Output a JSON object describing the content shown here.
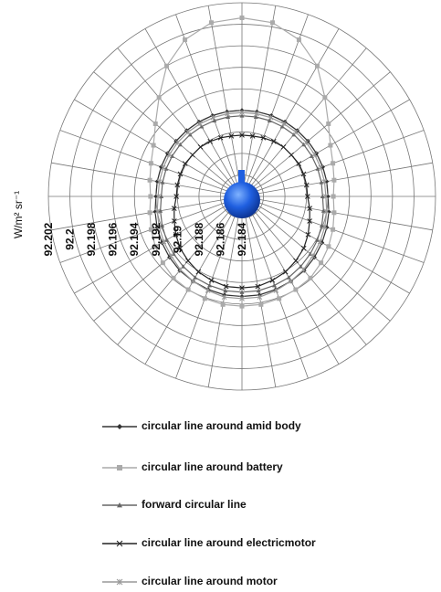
{
  "chart_data": {
    "type": "radar",
    "axis_label": "W/m² sr⁻¹",
    "categories": [
      null,
      null,
      null,
      null,
      null,
      null,
      null,
      null,
      null,
      null,
      null,
      null,
      null,
      null,
      null,
      null,
      null,
      null,
      null,
      null,
      null,
      null,
      null,
      null,
      null,
      null,
      null,
      null,
      null,
      null,
      null,
      null,
      null,
      null,
      null,
      null
    ],
    "rlim": [
      92.184,
      92.202
    ],
    "rticks": [
      92.184,
      92.186,
      92.188,
      92.19,
      92.192,
      92.194,
      92.196,
      92.198,
      92.2,
      92.202
    ],
    "grid": true,
    "legend": "bottom",
    "series": [
      {
        "name": "circular line around amid body",
        "color": "#333333",
        "marker": "diamond",
        "values": [
          92.192,
          92.192,
          92.192,
          92.192,
          92.192,
          92.192,
          92.192,
          92.192,
          92.192,
          92.192,
          92.1922,
          92.1924,
          92.1926,
          92.1928,
          92.193,
          92.1931,
          92.1932,
          92.1933,
          92.1933,
          92.1933,
          92.1932,
          92.1931,
          92.193,
          92.1928,
          92.1926,
          92.1924,
          92.1922,
          92.192,
          92.192,
          92.192,
          92.192,
          92.192,
          92.192,
          92.192,
          92.192,
          92.192
        ]
      },
      {
        "name": "circular line around battery",
        "color": "#aaaaaa",
        "marker": "square",
        "values": [
          92.2006,
          92.2004,
          92.1995,
          92.198,
          92.196,
          92.1945,
          92.1935,
          92.193,
          92.1927,
          92.1925,
          92.1927,
          92.193,
          92.1933,
          92.1936,
          92.1939,
          92.194,
          92.1941,
          92.1942,
          92.1942,
          92.1942,
          92.1941,
          92.194,
          92.1939,
          92.1936,
          92.1933,
          92.193,
          92.1927,
          92.1925,
          92.1927,
          92.193,
          92.1935,
          92.1945,
          92.196,
          92.198,
          92.1995,
          92.2004
        ]
      },
      {
        "name": "forward circular line",
        "color": "#666666",
        "marker": "triangle",
        "values": [
          92.1915,
          92.1915,
          92.1915,
          92.1915,
          92.1915,
          92.1915,
          92.1915,
          92.1915,
          92.1915,
          92.1915,
          92.1917,
          92.1919,
          92.1921,
          92.1923,
          92.1925,
          92.1927,
          92.1928,
          92.1929,
          92.1929,
          92.1929,
          92.1928,
          92.1927,
          92.1925,
          92.1923,
          92.1921,
          92.1919,
          92.1917,
          92.1915,
          92.1915,
          92.1915,
          92.1915,
          92.1915,
          92.1915,
          92.1915,
          92.1915,
          92.1915
        ]
      },
      {
        "name": "circular line around electricmotor",
        "color": "#222222",
        "marker": "x",
        "values": [
          92.1897,
          92.1897,
          92.1898,
          92.1899,
          92.19,
          92.19,
          92.1901,
          92.1901,
          92.1901,
          92.1901,
          92.1904,
          92.1907,
          92.1911,
          92.1915,
          92.1918,
          92.1921,
          92.1923,
          92.1925,
          92.1925,
          92.1925,
          92.1923,
          92.1921,
          92.1918,
          92.1915,
          92.1911,
          92.1907,
          92.1904,
          92.1901,
          92.1901,
          92.1901,
          92.1901,
          92.19,
          92.19,
          92.1899,
          92.1898,
          92.1897
        ]
      },
      {
        "name": "circular line around motor",
        "color": "#999999",
        "marker": "star",
        "values": [
          92.1918,
          92.1918,
          92.1918,
          92.1918,
          92.1918,
          92.1918,
          92.1918,
          92.1918,
          92.1918,
          92.1918,
          92.192,
          92.1922,
          92.1924,
          92.1926,
          92.1929,
          92.1931,
          92.1933,
          92.1935,
          92.1935,
          92.1935,
          92.1933,
          92.1931,
          92.1929,
          92.1926,
          92.1924,
          92.1922,
          92.192,
          92.1918,
          92.1918,
          92.1918,
          92.1918,
          92.1918,
          92.1918,
          92.1918,
          92.1918,
          92.1918
        ]
      }
    ]
  }
}
